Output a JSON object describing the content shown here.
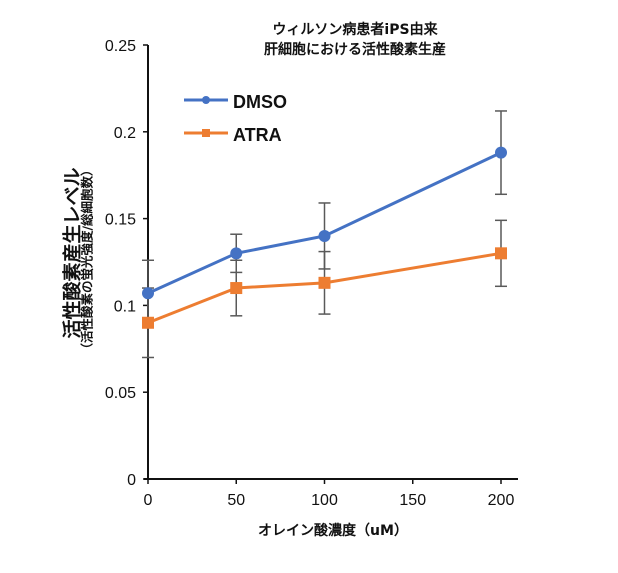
{
  "chart_data": {
    "type": "line",
    "title": [
      "ウィルソン病患者iPS由来",
      "肝細胞における活性酸素生産"
    ],
    "xlabel": "オレイン酸濃度（uM）",
    "ylabel": "活性酸素産生レベル",
    "ylabel_sub": "（活性酸素の蛍光強度/総細胞数）",
    "x": [
      0,
      50,
      100,
      200
    ],
    "xlim": [
      0,
      210
    ],
    "ylim": [
      0,
      0.25
    ],
    "xticks": [
      "0",
      "50",
      "100",
      "150",
      "200"
    ],
    "xtick_values": [
      0,
      50,
      100,
      150,
      200
    ],
    "yticks": [
      "0",
      "0.05",
      "0.1",
      "0.15",
      "0.2",
      "0.25"
    ],
    "ytick_values": [
      0,
      0.05,
      0.1,
      0.15,
      0.2,
      0.25
    ],
    "grid": false,
    "legend_position": "top-left",
    "series": [
      {
        "name": "DMSO",
        "color": "#4472C4",
        "marker": "circle",
        "values": [
          0.107,
          0.13,
          0.14,
          0.188
        ],
        "error": [
          0.019,
          0.011,
          0.019,
          0.024
        ]
      },
      {
        "name": "ATRA",
        "color": "#ED7D31",
        "marker": "square",
        "values": [
          0.09,
          0.11,
          0.113,
          0.13
        ],
        "error": [
          0.02,
          0.016,
          0.018,
          0.019
        ]
      }
    ],
    "error_bar_color": "#595959"
  }
}
